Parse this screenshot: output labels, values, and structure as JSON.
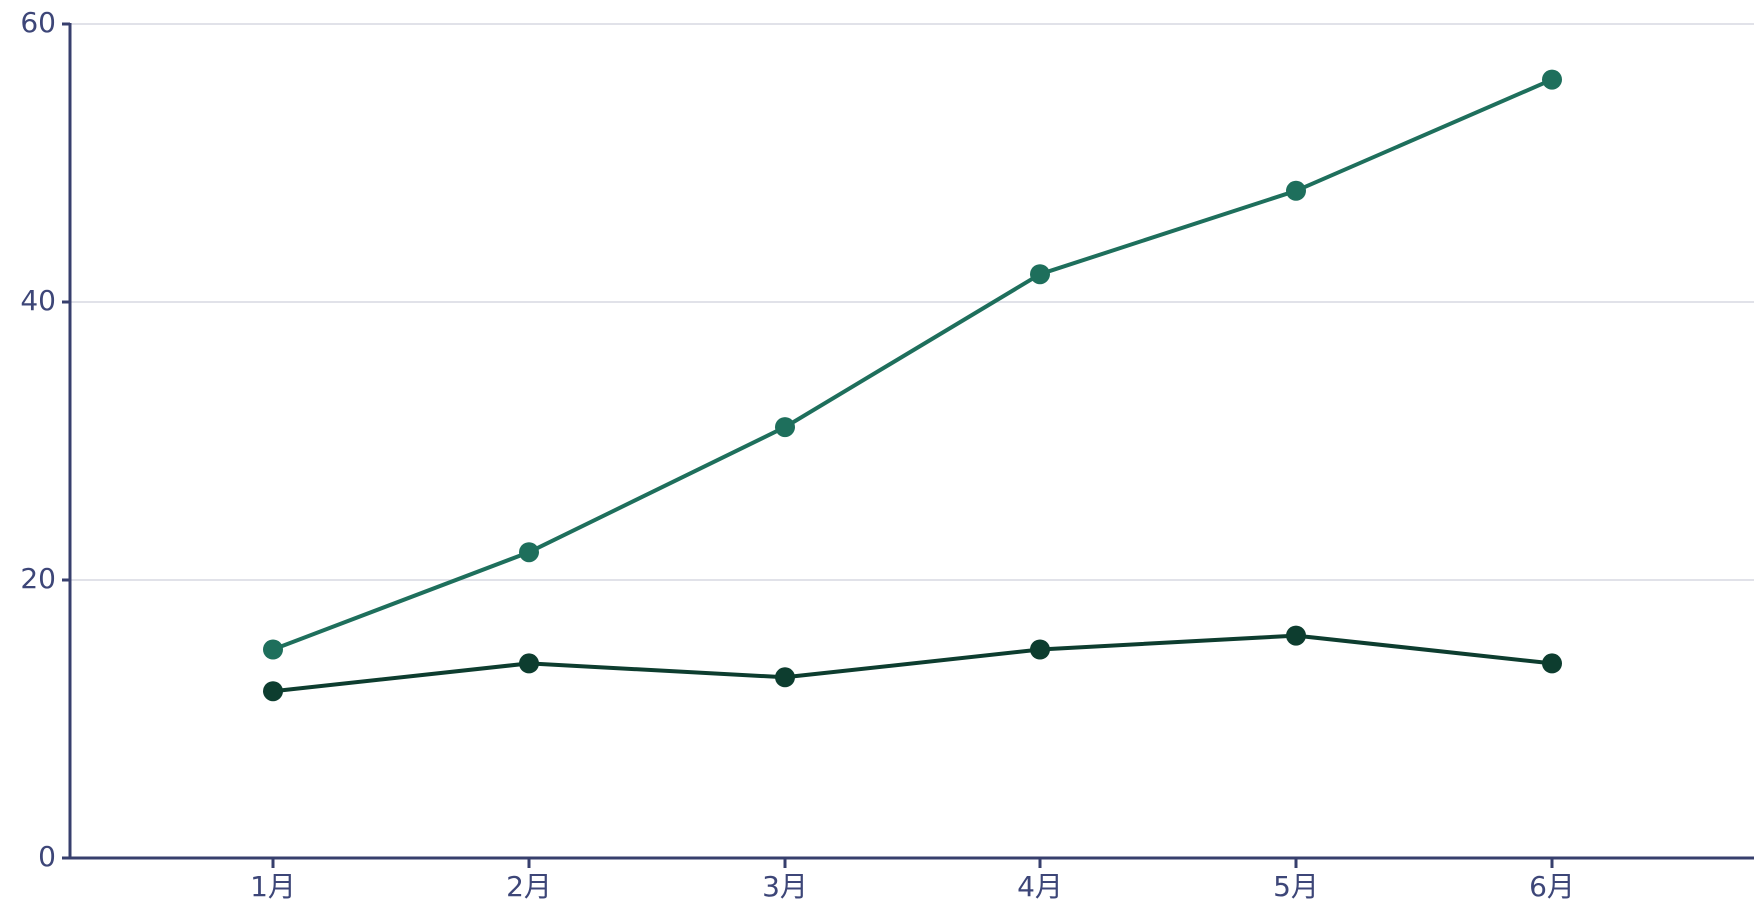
{
  "chart_data": {
    "type": "line",
    "categories": [
      "1月",
      "2月",
      "3月",
      "4月",
      "5月",
      "6月"
    ],
    "series": [
      {
        "values": [
          15,
          22,
          31,
          42,
          48,
          56
        ],
        "color": "#1e6f5c"
      },
      {
        "values": [
          12,
          14,
          13,
          15,
          16,
          14
        ],
        "color": "#0d3d2f"
      }
    ],
    "title": "",
    "xlabel": "",
    "ylabel": "",
    "ylim": [
      0,
      60
    ],
    "yticks": [
      "0",
      "20",
      "40",
      "60"
    ],
    "grid": true,
    "legend": "none"
  }
}
